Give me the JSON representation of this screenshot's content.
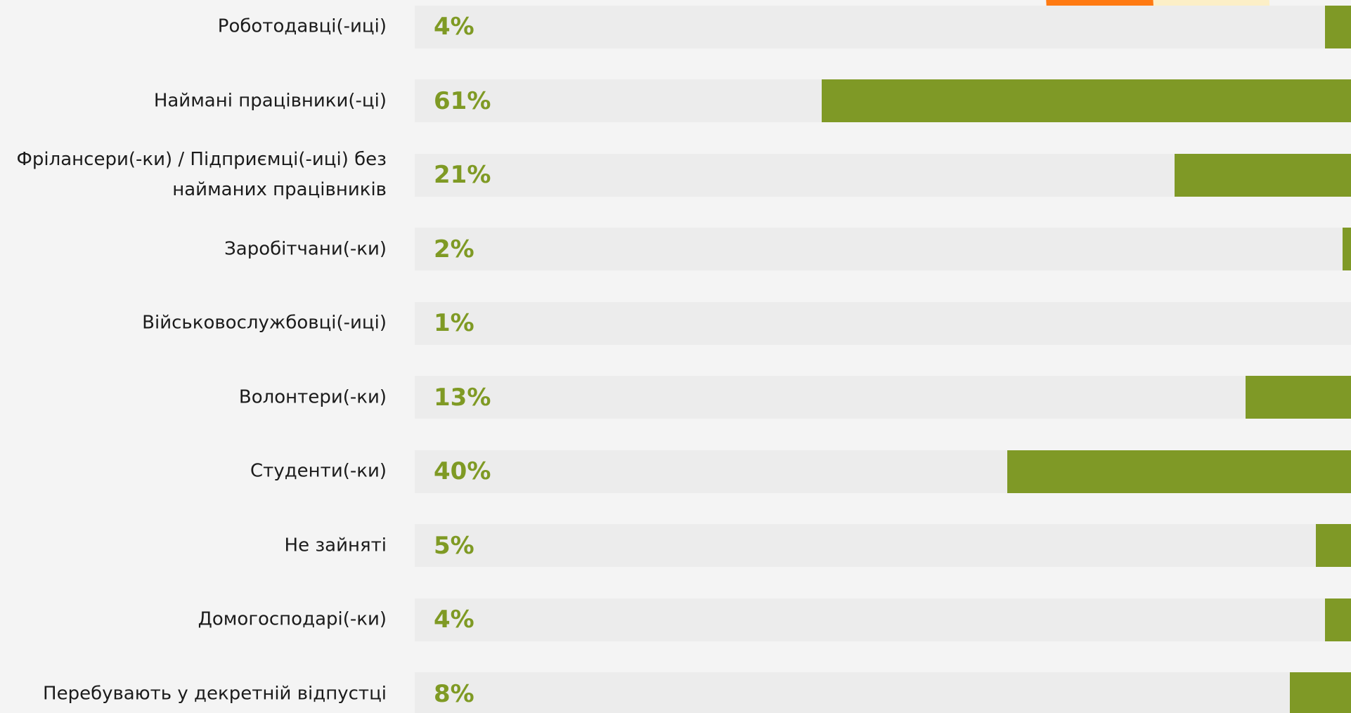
{
  "chart_data": {
    "type": "bar",
    "orientation": "horizontal",
    "categories": [
      "Роботодавці(-иці)",
      "Наймані працівники(-ці)",
      "Фрілансери(-ки) / Підприємці(-иці) без найманих працівників",
      "Заробітчани(-ки)",
      "Військовослужбовці(-иці)",
      "Волонтери(-ки)",
      "Студенти(-ки)",
      "Не зайняті",
      "Домогосподарі(-ки)",
      "Перебувають у декретній відпустці"
    ],
    "values": [
      4,
      61,
      21,
      2,
      1,
      13,
      40,
      5,
      4,
      8
    ],
    "value_labels": [
      "4%",
      "61%",
      "21%",
      "2%",
      "1%",
      "13%",
      "40%",
      "5%",
      "4%",
      "8%"
    ],
    "color": "#7f9926"
  }
}
